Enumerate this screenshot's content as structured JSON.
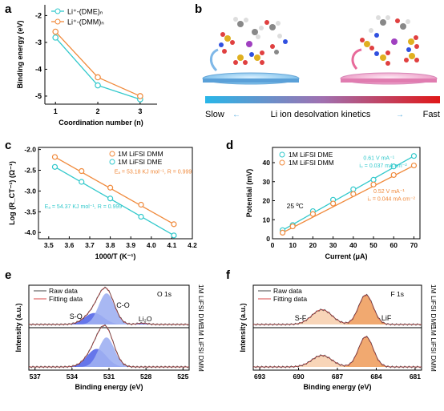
{
  "colors": {
    "dme": "#33c9cc",
    "dmm": "#f08a3c",
    "blue_fill": "#5567e8",
    "blue_fill_light": "#9fb0f2",
    "orange_fill": "#f0a060",
    "orange_fill_light": "#f7d0b0",
    "fit": "#d94848",
    "raw": "#444444",
    "gradient": [
      "#29b6e8",
      "#a070b0",
      "#e01818"
    ]
  },
  "panel_b": {
    "label": "b",
    "slow": "Slow",
    "fast": "Fast",
    "caption": "Li ion desolvation kinetics"
  },
  "chart_data": [
    {
      "panel": "a",
      "type": "line",
      "xlabel": "Coordination number (n)",
      "ylabel": "Binding energy (eV)",
      "xlim": [
        0.75,
        3.4
      ],
      "ylim": [
        -5.3,
        -1.6
      ],
      "xticks": [
        "1",
        "2",
        "3"
      ],
      "yticks": [
        "-2",
        "-3",
        "-4",
        "-5"
      ],
      "legend": [
        "Li⁺-(DME)ₙ",
        "Li⁺-(DMM)ₙ"
      ],
      "series": [
        {
          "name": "Li⁺-(DME)ₙ",
          "x": [
            1,
            2,
            3
          ],
          "y": [
            -2.82,
            -4.6,
            -5.12
          ]
        },
        {
          "name": "Li⁺-(DMM)ₙ",
          "x": [
            1,
            2,
            3
          ],
          "y": [
            -2.6,
            -4.3,
            -5.0
          ]
        }
      ]
    },
    {
      "panel": "c",
      "type": "scatter",
      "xlabel": "1000/T (K⁻¹)",
      "ylabel": "Log (R_CT⁻¹) (Ω⁻¹)",
      "xlim": [
        3.45,
        4.2
      ],
      "ylim": [
        -4.15,
        -1.95
      ],
      "xticks": [
        "3.5",
        "3.6",
        "3.7",
        "3.8",
        "3.9",
        "4.0",
        "4.1",
        "4.2"
      ],
      "yticks": [
        "-2.0",
        "-2.5",
        "-3.0",
        "-3.5",
        "-4.0"
      ],
      "legend": [
        "1M LiFSI DMM",
        "1M LiFSI DME"
      ],
      "annotations": [
        "Eₐ = 53.18 KJ mol⁻¹, R = 0.999",
        "Eₐ = 54.37 KJ mol⁻¹, R = 0.999"
      ],
      "series": [
        {
          "name": "1M LiFSI DMM",
          "x": [
            3.53,
            3.66,
            3.8,
            3.95,
            4.11
          ],
          "y": [
            -2.18,
            -2.52,
            -2.92,
            -3.33,
            -3.8
          ]
        },
        {
          "name": "1M LiFSI DME",
          "x": [
            3.53,
            3.66,
            3.8,
            3.95,
            4.11
          ],
          "y": [
            -2.42,
            -2.78,
            -3.18,
            -3.62,
            -4.07
          ]
        }
      ]
    },
    {
      "panel": "d",
      "type": "scatter",
      "xlabel": "Current (μA)",
      "ylabel": "Potential (mV)",
      "xlim": [
        0,
        73
      ],
      "ylim": [
        0,
        48
      ],
      "xticks": [
        "0",
        "10",
        "20",
        "30",
        "40",
        "50",
        "60",
        "70"
      ],
      "yticks": [
        "0",
        "10",
        "20",
        "30",
        "40"
      ],
      "legend": [
        "1M LiFSI DME",
        "1M LiFSI DMM"
      ],
      "annotations": [
        "0.61 V mA⁻¹",
        "i₀ = 0.037 mA cm⁻²",
        "0.52 V mA⁻¹",
        "i₀ = 0.044 mA cm⁻²",
        "25 ºC"
      ],
      "series": [
        {
          "name": "1M LiFSI DME",
          "x": [
            5,
            10,
            20,
            30,
            40,
            50,
            60,
            70
          ],
          "y": [
            4.5,
            7.2,
            14.5,
            20.5,
            26,
            31,
            38,
            43.5
          ]
        },
        {
          "name": "1M LiFSI DMM",
          "x": [
            5,
            10,
            20,
            30,
            40,
            50,
            60,
            70
          ],
          "y": [
            3.2,
            6.5,
            13,
            18.5,
            23.5,
            28.5,
            33.5,
            38.5
          ]
        }
      ]
    },
    {
      "panel": "e",
      "type": "area",
      "xlabel": "Binding energy (eV)",
      "ylabel": "Intensity (a.u.)",
      "xlim": [
        537.5,
        524.5
      ],
      "xticks": [
        "537",
        "534",
        "531",
        "528",
        "525"
      ],
      "legend": [
        "Raw data",
        "Fitting data"
      ],
      "title": "O 1s",
      "subplots": [
        "1M LiFSI DME",
        "1M LiFSI DMM"
      ],
      "peak_labels": [
        "C-O",
        "S-O",
        "Li₂O"
      ]
    },
    {
      "panel": "f",
      "type": "area",
      "xlabel": "Binding energy (eV)",
      "ylabel": "Intensity (a.u.)",
      "xlim": [
        693.5,
        680.5
      ],
      "xticks": [
        "693",
        "690",
        "687",
        "684",
        "681"
      ],
      "legend": [
        "Raw data",
        "Fitting data"
      ],
      "title": "F 1s",
      "subplots": [
        "1M LiFSI DME",
        "1M LiFSI DMM"
      ],
      "peak_labels": [
        "S-F",
        "LiF"
      ]
    }
  ]
}
